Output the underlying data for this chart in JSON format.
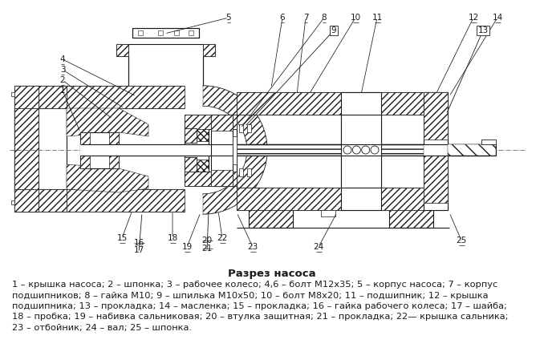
{
  "title": "Разрез насоса",
  "bg_color": "#ffffff",
  "description_lines": [
    "1 – крышка насоса; 2 – шпонка; 3 – рабочее колесо; 4,6 – болт М12х35; 5 – корпус насоса; 7 – корпус",
    "подшипников; 8 – гайка М10; 9 – шпилька М10х50; 10 – болт М8х20; 11 – подшипник; 12 – крышка",
    "подшипника; 13 – прокладка; 14 – масленка; 15 – прокладка; 16 – гайка рабочего колеса; 17 – шайба;",
    "18 – пробка; 19 – набивка сальниковая; 20 – втулка защитная; 21 – прокладка; 22— крышка сальника;",
    "23 – отбойник; 24 – вал; 25 – шпонка."
  ],
  "line_color": "#1a1a1a",
  "figure_width": 6.78,
  "figure_height": 4.54,
  "dpi": 100
}
